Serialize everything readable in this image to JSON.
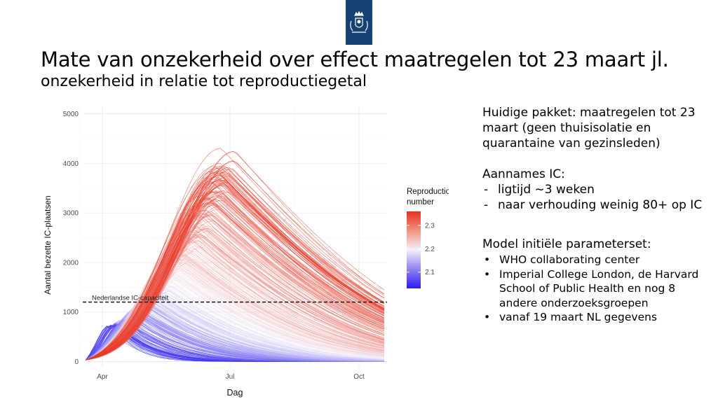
{
  "title": "Mate van onzekerheid over effect maatregelen tot 23 maart jl.",
  "subtitle": "onzekerheid in relatie tot reproductiegetal",
  "logo_icon": "dutch-government-coat-of-arms-icon",
  "colors": {
    "logo_blue": "#154273",
    "low_reproduction": "#2b1cf0",
    "mid_reproduction": "#f4f0f8",
    "high_reproduction": "#e8301c",
    "capacity_line": "#000000",
    "grid": "#ebebeb"
  },
  "chart_data": {
    "type": "line",
    "title": "",
    "xlabel": "Dag",
    "ylabel": "Aantal bezette IC-plaatsen",
    "x_ticks": [
      "Apr",
      "Jul",
      "Oct"
    ],
    "x_range": [
      "2020-03-18",
      "2020-10-21"
    ],
    "ylim": [
      -120,
      5150
    ],
    "y_ticks": [
      0,
      1000,
      2000,
      3000,
      4000,
      5000
    ],
    "grid": true,
    "legend": {
      "title_lines": [
        "Reproduction",
        "number"
      ],
      "position": "right",
      "range": [
        2.03,
        2.36
      ],
      "ticks": [
        2.1,
        2.2,
        2.3
      ]
    },
    "series_description_count": 400,
    "series_envelope": {
      "start_date": "2020-03-20",
      "start_value": 30,
      "lowest_peak": {
        "value": 720,
        "date": "2020-04-06"
      },
      "highest_peak": {
        "value": 4400,
        "date": "2020-06-29"
      },
      "end_date": "2020-10-21"
    },
    "reference_line": {
      "label": "Nederlandse IC-capaciteit",
      "value": 1200
    }
  },
  "side": {
    "package_text": "Huidige pakket: maatregelen tot 23 maart (geen thuisisolatie en quarantaine van gezinsleden)",
    "assumptions_title": "Aannames IC:",
    "assumptions": [
      "ligtijd ~3 weken",
      "naar verhouding weinig 80+ op IC"
    ],
    "model_title": "Model initiële parameterset:",
    "model_items": [
      "WHO collaborating center",
      "Imperial College London, de Harvard School of Public Health en nog 8 andere onderzoeksgroepen",
      "vanaf 19 maart NL gegevens"
    ]
  }
}
